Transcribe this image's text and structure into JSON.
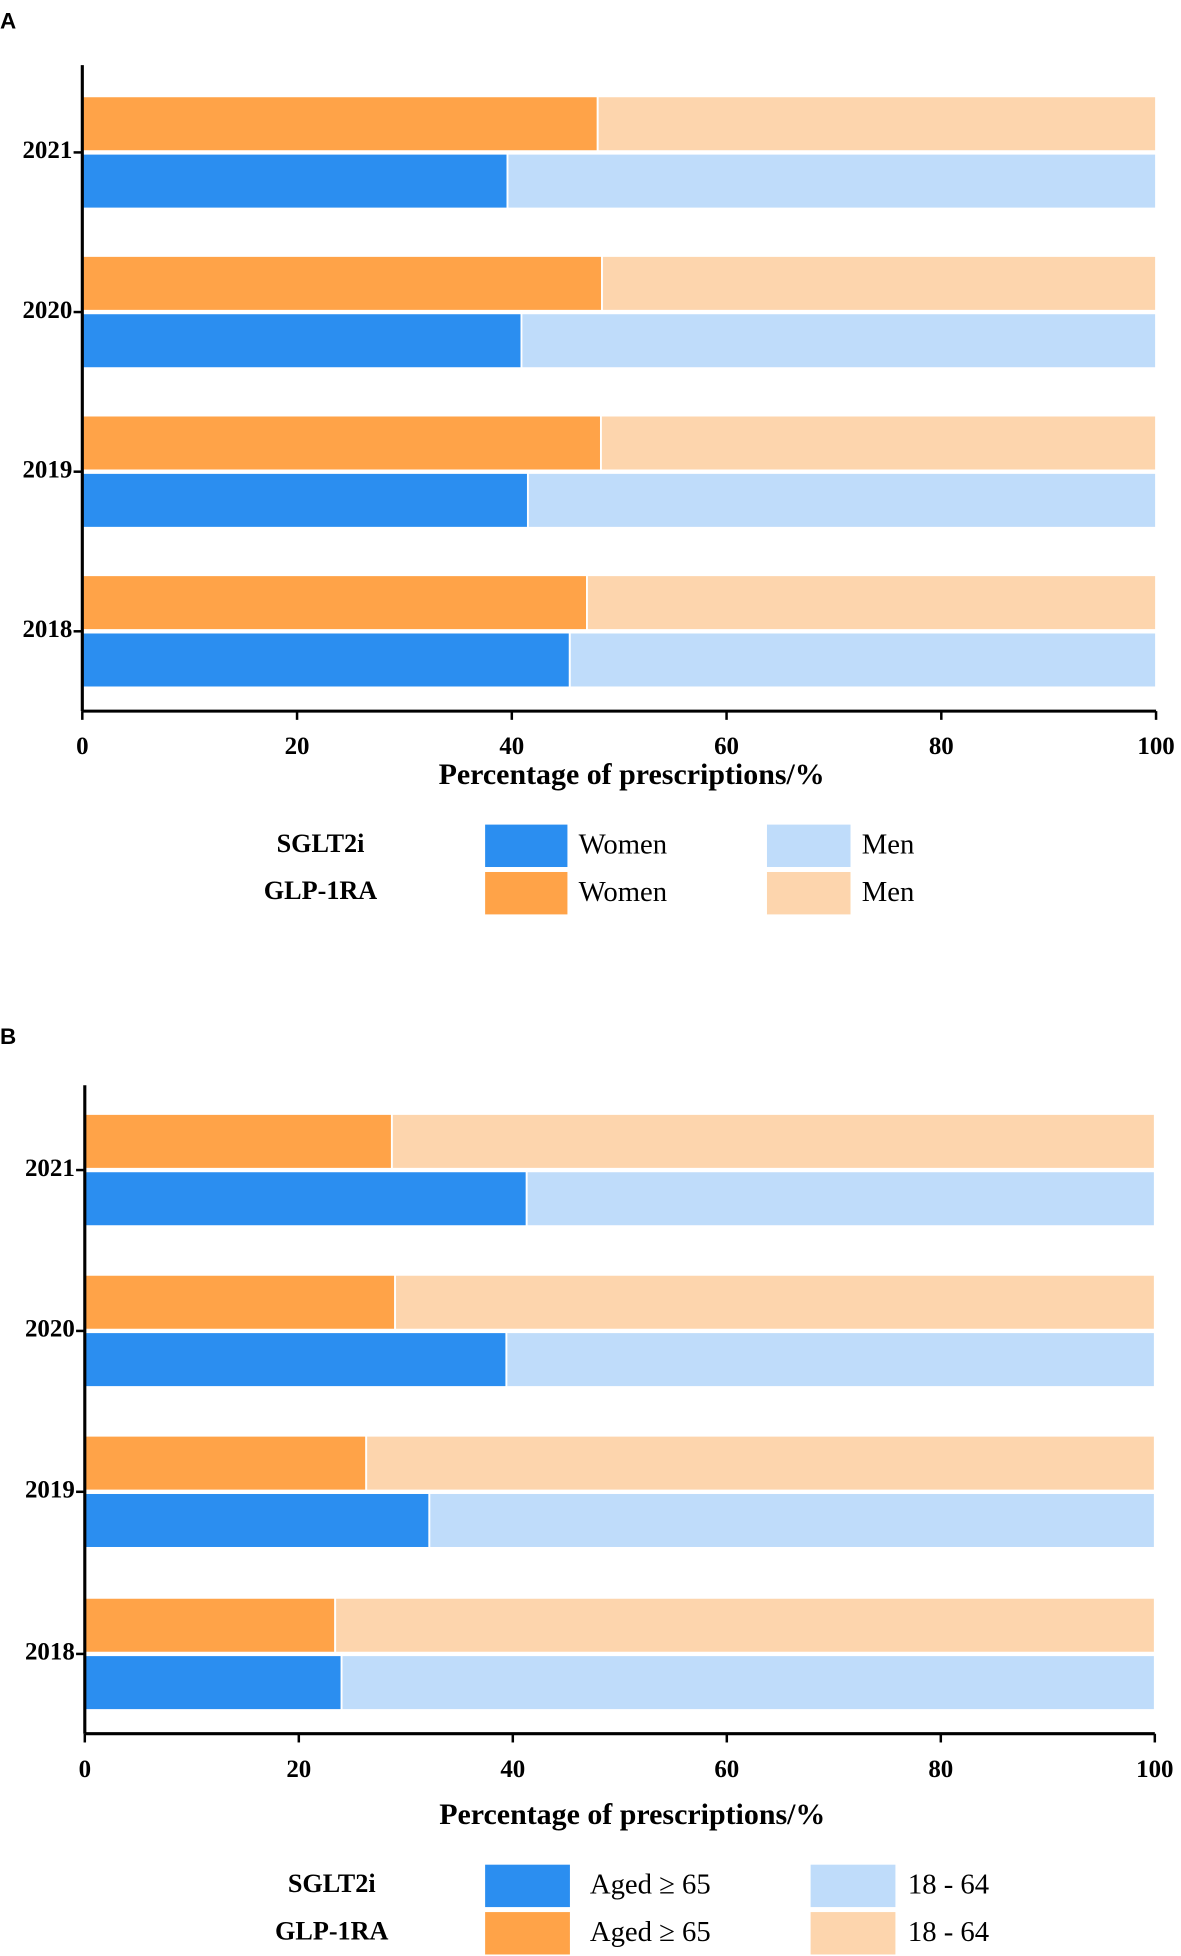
{
  "chart_data": [
    {
      "type": "bar",
      "orientation": "horizontal",
      "stacked": true,
      "panel": "A",
      "categories": [
        "2018",
        "2019",
        "2020",
        "2021"
      ],
      "xlabel": "Percentage of prescriptions/%",
      "xlim": [
        0,
        100
      ],
      "xticks": [
        0,
        20,
        40,
        60,
        80,
        100
      ],
      "groups": [
        {
          "name": "SGLT2i",
          "series": [
            {
              "name": "Women",
              "color": "#2b8ef0",
              "values": [
                45.4,
                41.5,
                40.9,
                39.6
              ]
            },
            {
              "name": "Men",
              "color": "#bfdcfa",
              "values": [
                54.6,
                58.5,
                59.1,
                60.4
              ]
            }
          ]
        },
        {
          "name": "GLP-1RA",
          "series": [
            {
              "name": "Women",
              "color": "#ffa348",
              "values": [
                47.0,
                48.3,
                48.4,
                48.0
              ]
            },
            {
              "name": "Men",
              "color": "#fdd5ad",
              "values": [
                53.0,
                51.7,
                51.6,
                52.0
              ]
            }
          ]
        }
      ]
    },
    {
      "type": "bar",
      "orientation": "horizontal",
      "stacked": true,
      "panel": "B",
      "categories": [
        "2018",
        "2019",
        "2020",
        "2021"
      ],
      "xlabel": "Percentage of prescriptions/%",
      "xlim": [
        0,
        100
      ],
      "xticks": [
        0,
        20,
        40,
        60,
        80,
        100
      ],
      "groups": [
        {
          "name": "SGLT2i",
          "series": [
            {
              "name": "Aged ≥ 65",
              "color": "#2b8ef0",
              "values": [
                24.0,
                32.2,
                39.4,
                41.3
              ]
            },
            {
              "name": "18 - 64",
              "color": "#bfdcfa",
              "values": [
                76.0,
                67.8,
                60.6,
                58.7
              ]
            }
          ]
        },
        {
          "name": "GLP-1RA",
          "series": [
            {
              "name": "Aged ≥ 65",
              "color": "#ffa348",
              "values": [
                23.4,
                26.3,
                29.0,
                28.7
              ]
            },
            {
              "name": "18 - 64",
              "color": "#fdd5ad",
              "values": [
                76.6,
                73.7,
                71.0,
                71.3
              ]
            }
          ]
        }
      ]
    }
  ]
}
